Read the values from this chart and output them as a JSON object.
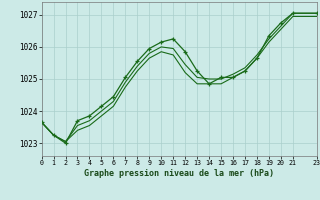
{
  "title": "Graphe pression niveau de la mer (hPa)",
  "bg_color": "#cceae7",
  "grid_color": "#aacfcc",
  "line_color": "#1a6b1a",
  "marker_color": "#1a6b1a",
  "xlim": [
    0,
    23
  ],
  "ylim": [
    1022.6,
    1027.4
  ],
  "xticks": [
    0,
    1,
    2,
    3,
    4,
    5,
    6,
    7,
    8,
    9,
    10,
    11,
    12,
    13,
    14,
    15,
    16,
    17,
    18,
    19,
    20,
    21,
    23
  ],
  "yticks": [
    1023,
    1024,
    1025,
    1026,
    1027
  ],
  "main_x": [
    0,
    1,
    2,
    3,
    4,
    5,
    6,
    7,
    8,
    9,
    10,
    11,
    12,
    13,
    14,
    15,
    16,
    17,
    18,
    19,
    20,
    21,
    23
  ],
  "main_y": [
    1023.65,
    1023.25,
    1023.0,
    1023.7,
    1023.85,
    1024.15,
    1024.45,
    1025.05,
    1025.55,
    1025.95,
    1026.15,
    1026.25,
    1025.85,
    1025.25,
    1024.85,
    1025.05,
    1025.05,
    1025.25,
    1025.65,
    1026.35,
    1026.75,
    1027.05,
    1027.05
  ],
  "band1_x": [
    0,
    1,
    2,
    3,
    4,
    5,
    6,
    7,
    8,
    9,
    10,
    11,
    12,
    13,
    14,
    15,
    16,
    17,
    18,
    19,
    20,
    21,
    23
  ],
  "band1_y": [
    1023.65,
    1023.25,
    1023.05,
    1023.4,
    1023.55,
    1023.85,
    1024.15,
    1024.75,
    1025.25,
    1025.65,
    1025.85,
    1025.75,
    1025.2,
    1024.85,
    1024.85,
    1024.85,
    1025.05,
    1025.25,
    1025.65,
    1026.15,
    1026.55,
    1026.95,
    1026.95
  ],
  "band2_x": [
    0,
    1,
    2,
    3,
    4,
    5,
    6,
    7,
    8,
    9,
    10,
    11,
    12,
    13,
    14,
    15,
    16,
    17,
    18,
    19,
    20,
    21,
    23
  ],
  "band2_y": [
    1023.65,
    1023.25,
    1023.05,
    1023.55,
    1023.7,
    1024.0,
    1024.3,
    1024.9,
    1025.4,
    1025.8,
    1026.0,
    1025.95,
    1025.45,
    1025.05,
    1025.0,
    1025.0,
    1025.15,
    1025.35,
    1025.75,
    1026.25,
    1026.65,
    1027.05,
    1027.05
  ]
}
